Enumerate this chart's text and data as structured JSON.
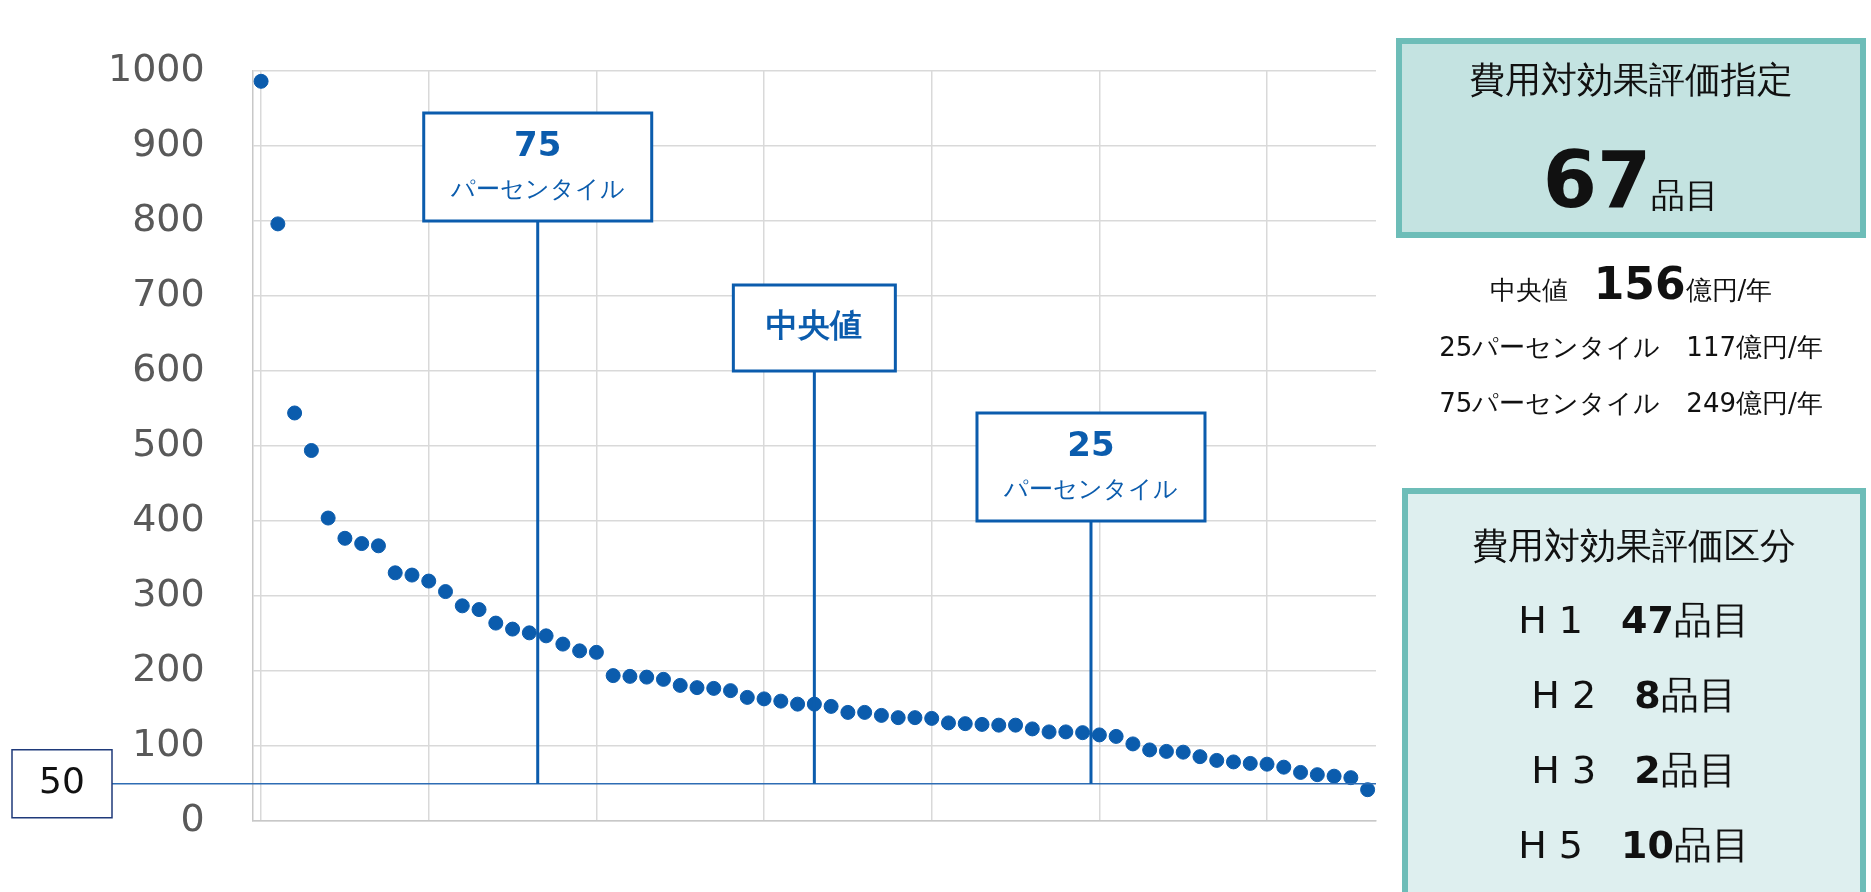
{
  "chart_data": {
    "type": "scatter",
    "marker": "circle",
    "grid": true,
    "tick_labels": "y",
    "legend": false,
    "categories": [
      null,
      null,
      null,
      null,
      null,
      null,
      null,
      null,
      null,
      null,
      null,
      null,
      null,
      null,
      null,
      null,
      null,
      null,
      null,
      null,
      null,
      null,
      null,
      null,
      null,
      null,
      null,
      null,
      null,
      null,
      null,
      null,
      null,
      null,
      null,
      null,
      null,
      null,
      null,
      null,
      null,
      null,
      null,
      null,
      null,
      null,
      null,
      null,
      null,
      null,
      null,
      null,
      null,
      null,
      null,
      null,
      null,
      null,
      null,
      null,
      null,
      null,
      null,
      null,
      null,
      null,
      null
    ],
    "series": [
      {
        "color": "#0b5cad",
        "values": [
          986,
          796,
          544,
          494,
          404,
          377,
          370,
          367,
          331,
          328,
          320,
          306,
          287,
          282,
          264,
          256,
          251,
          247,
          236,
          227,
          225,
          194,
          193,
          192,
          189,
          181,
          178,
          177,
          174,
          165,
          163,
          160,
          156,
          156,
          153,
          145,
          145,
          141,
          138,
          138,
          137,
          131,
          130,
          129,
          128,
          128,
          123,
          119,
          119,
          118,
          115,
          113,
          103,
          95,
          93,
          92,
          86,
          81,
          79,
          77,
          76,
          72,
          65,
          62,
          60,
          58,
          42
        ]
      }
    ],
    "ylim": [
      0,
      1000
    ],
    "yticks": [
      0,
      100,
      200,
      300,
      400,
      500,
      600,
      700,
      800,
      900,
      1000
    ],
    "ref_lines": [
      {
        "axis": "y",
        "value": 50,
        "label": "50",
        "color": "#2e6db4"
      }
    ],
    "annotations": [
      "費用対効果評価指定",
      "67品目",
      "中央値　156億円/年",
      "25パーセンタイル　117億円/年",
      "75パーセンタイル　249億円/年",
      "費用対効果評価区分",
      "H 1　47品目",
      "H 2　8品目",
      "H 3　2品目",
      "H 5　10品目",
      "75\nパーセンタイル",
      "中央値",
      "25\nパーセンタイル"
    ]
  }
}
